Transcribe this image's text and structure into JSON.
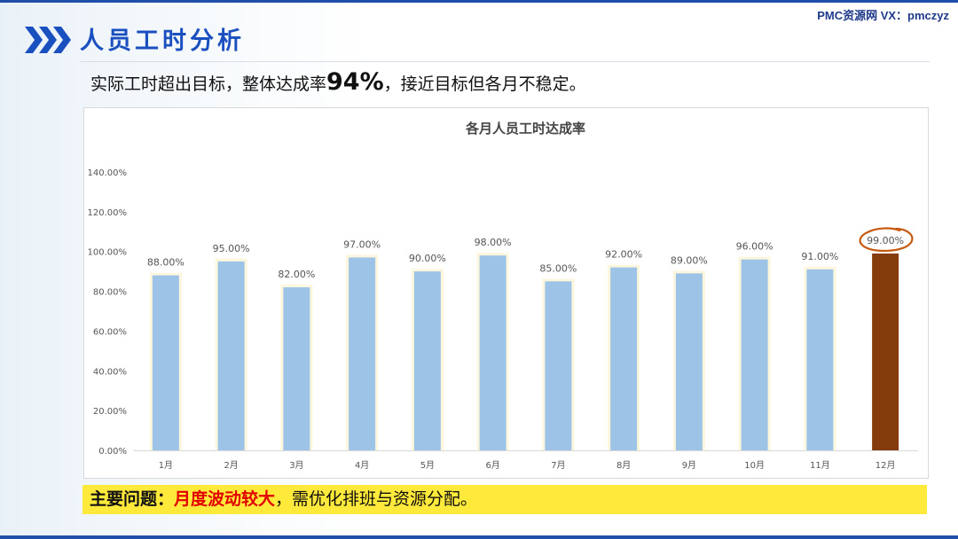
{
  "brand": "PMC资源网 VX：pmczyz",
  "page_title": "人员工时分析",
  "subtitle": {
    "before": "实际工时超出目标，整体达成率",
    "highlight": "94%",
    "after": "，接近目标但各月不稳定。"
  },
  "problem": {
    "lead": "主要问题：",
    "highlight": "月度波动较大",
    "rest": "，需优化排班与资源分配。"
  },
  "colors": {
    "accent": "#1a4fbf",
    "bar": "#9dc3e6",
    "bar_highlight": "#843c0c",
    "circle": "#c55a11",
    "problem_bg": "#ffe93a",
    "problem_highlight": "#e00000"
  },
  "chart_data": {
    "type": "bar",
    "title": "各月人员工时达成率",
    "categories": [
      "1月",
      "2月",
      "3月",
      "4月",
      "5月",
      "6月",
      "7月",
      "8月",
      "9月",
      "10月",
      "11月",
      "12月"
    ],
    "values": [
      88,
      95,
      82,
      97,
      90,
      98,
      85,
      92,
      89,
      96,
      91,
      99
    ],
    "value_labels": [
      "88.00%",
      "95.00%",
      "82.00%",
      "97.00%",
      "90.00%",
      "98.00%",
      "85.00%",
      "92.00%",
      "89.00%",
      "96.00%",
      "91.00%",
      "99.00%"
    ],
    "y_ticks": [
      "0.00%",
      "20.00%",
      "40.00%",
      "60.00%",
      "80.00%",
      "100.00%",
      "120.00%",
      "140.00%"
    ],
    "ylim": [
      0,
      140
    ],
    "highlight_index": 11,
    "grid": false,
    "legend": "none"
  }
}
